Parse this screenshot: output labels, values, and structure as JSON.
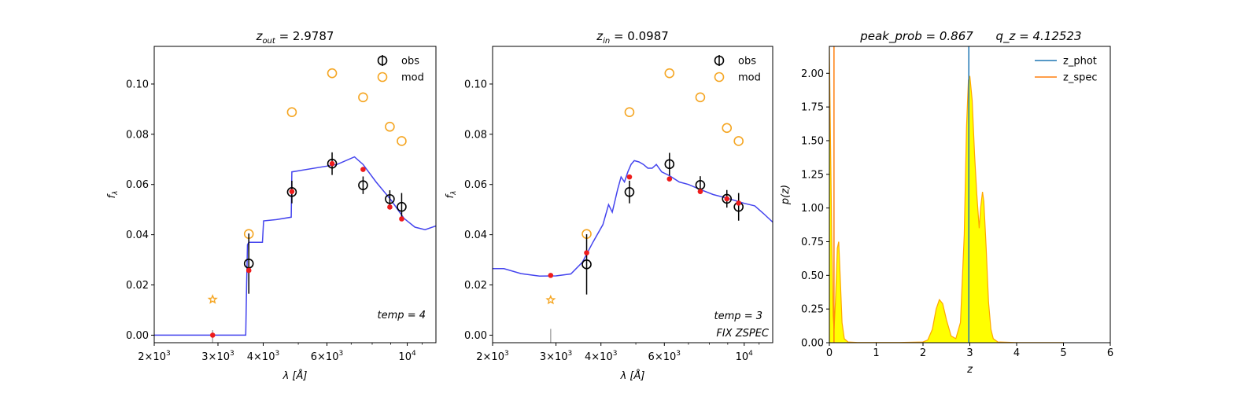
{
  "chart_data": [
    {
      "type": "scatter",
      "panel": 1,
      "title_parts": [
        "z",
        "out",
        " = 2.9787"
      ],
      "xlabel": "λ [Å]",
      "ylabel": "f",
      "ylabel_sub": "λ",
      "xscale": "log",
      "xlim": [
        2000,
        12000
      ],
      "ylim": [
        -0.003,
        0.115
      ],
      "xticks": [
        {
          "value": 2000,
          "base": "2×10",
          "exp": "3"
        },
        {
          "value": 3000,
          "base": "3×10",
          "exp": "3"
        },
        {
          "value": 4000,
          "base": "4×10",
          "exp": "3"
        },
        {
          "value": 6000,
          "base": "6×10",
          "exp": "3"
        },
        {
          "value": 10000,
          "base": "10",
          "exp": "4"
        }
      ],
      "yticks": [
        "0.00",
        "0.02",
        "0.04",
        "0.06",
        "0.08",
        "0.10"
      ],
      "legend": [
        "obs",
        "mod"
      ],
      "legend_position": "top-right",
      "annotation": "temp = 4",
      "annotation2": "",
      "obs": [
        {
          "x": 3650,
          "y": 0.0285,
          "err": 0.012
        },
        {
          "x": 4800,
          "y": 0.057,
          "err": 0.0045
        },
        {
          "x": 6200,
          "y": 0.0683,
          "err": 0.0045
        },
        {
          "x": 7550,
          "y": 0.0597,
          "err": 0.0035
        },
        {
          "x": 8950,
          "y": 0.0542,
          "err": 0.0035
        },
        {
          "x": 9650,
          "y": 0.0511,
          "err": 0.0055
        }
      ],
      "mod": [
        {
          "x": 3650,
          "y": 0.0403
        },
        {
          "x": 4800,
          "y": 0.0888
        },
        {
          "x": 6200,
          "y": 0.1043
        },
        {
          "x": 7550,
          "y": 0.0947
        },
        {
          "x": 8950,
          "y": 0.083
        },
        {
          "x": 9650,
          "y": 0.0773
        }
      ],
      "model_points": [
        {
          "x": 2900,
          "y": 0.0
        },
        {
          "x": 3650,
          "y": 0.0258
        },
        {
          "x": 4800,
          "y": 0.0572
        },
        {
          "x": 6200,
          "y": 0.0683
        },
        {
          "x": 7550,
          "y": 0.066
        },
        {
          "x": 8950,
          "y": 0.051
        },
        {
          "x": 9650,
          "y": 0.0463
        }
      ],
      "upper_limit": {
        "x": 2900,
        "y": 0.0142
      },
      "limit_line": {
        "x": 2900,
        "y1": -0.003,
        "y2": 0.002
      },
      "sed": [
        [
          2000,
          0
        ],
        [
          3580,
          0
        ],
        [
          3600,
          0.02
        ],
        [
          3620,
          0.036
        ],
        [
          3650,
          0.037
        ],
        [
          3980,
          0.037
        ],
        [
          4010,
          0.0455
        ],
        [
          4350,
          0.046
        ],
        [
          4780,
          0.047
        ],
        [
          4800,
          0.065
        ],
        [
          6400,
          0.068
        ],
        [
          7150,
          0.071
        ],
        [
          7550,
          0.068
        ],
        [
          8200,
          0.061
        ],
        [
          9000,
          0.054
        ],
        [
          9800,
          0.0465
        ],
        [
          10500,
          0.043
        ],
        [
          11200,
          0.042
        ],
        [
          12000,
          0.0435
        ]
      ]
    },
    {
      "type": "scatter",
      "panel": 2,
      "title_parts": [
        "z",
        "in",
        " = 0.0987"
      ],
      "xlabel": "λ [Å]",
      "ylabel": "f",
      "ylabel_sub": "λ",
      "xscale": "log",
      "xlim": [
        2000,
        12000
      ],
      "ylim": [
        -0.003,
        0.115
      ],
      "xticks": [
        {
          "value": 2000,
          "base": "2×10",
          "exp": "3"
        },
        {
          "value": 3000,
          "base": "3×10",
          "exp": "3"
        },
        {
          "value": 4000,
          "base": "4×10",
          "exp": "3"
        },
        {
          "value": 6000,
          "base": "6×10",
          "exp": "3"
        },
        {
          "value": 10000,
          "base": "10",
          "exp": "4"
        }
      ],
      "yticks": [
        "0.00",
        "0.02",
        "0.04",
        "0.06",
        "0.08",
        "0.10"
      ],
      "legend": [
        "obs",
        "mod"
      ],
      "legend_position": "top-right",
      "annotation": "temp = 3",
      "annotation2": "FIX ZSPEC",
      "obs": [
        {
          "x": 3650,
          "y": 0.0282,
          "err": 0.012
        },
        {
          "x": 4800,
          "y": 0.057,
          "err": 0.0045
        },
        {
          "x": 6200,
          "y": 0.0681,
          "err": 0.0045
        },
        {
          "x": 7550,
          "y": 0.0598,
          "err": 0.0035
        },
        {
          "x": 8950,
          "y": 0.0543,
          "err": 0.0035
        },
        {
          "x": 9650,
          "y": 0.0511,
          "err": 0.0055
        }
      ],
      "mod": [
        {
          "x": 3650,
          "y": 0.0403
        },
        {
          "x": 4800,
          "y": 0.0888
        },
        {
          "x": 6200,
          "y": 0.1043
        },
        {
          "x": 7550,
          "y": 0.0947
        },
        {
          "x": 8950,
          "y": 0.0825
        },
        {
          "x": 9650,
          "y": 0.0773
        }
      ],
      "model_points": [
        {
          "x": 2900,
          "y": 0.0238
        },
        {
          "x": 3650,
          "y": 0.0328
        },
        {
          "x": 4800,
          "y": 0.063
        },
        {
          "x": 6200,
          "y": 0.0622
        },
        {
          "x": 7550,
          "y": 0.0572
        },
        {
          "x": 8950,
          "y": 0.0543
        },
        {
          "x": 9650,
          "y": 0.0526
        }
      ],
      "upper_limit": {
        "x": 2900,
        "y": 0.014
      },
      "limit_line": {
        "x": 2900,
        "y1": -0.003,
        "y2": 0.0025
      },
      "sed": [
        [
          2000,
          0.0265
        ],
        [
          2150,
          0.0265
        ],
        [
          2400,
          0.0245
        ],
        [
          2700,
          0.0235
        ],
        [
          3000,
          0.0236
        ],
        [
          3300,
          0.0244
        ],
        [
          3550,
          0.029
        ],
        [
          3800,
          0.037
        ],
        [
          4050,
          0.044
        ],
        [
          4200,
          0.052
        ],
        [
          4300,
          0.049
        ],
        [
          4450,
          0.058
        ],
        [
          4550,
          0.063
        ],
        [
          4650,
          0.061
        ],
        [
          4750,
          0.065
        ],
        [
          4850,
          0.068
        ],
        [
          4950,
          0.0695
        ],
        [
          5100,
          0.069
        ],
        [
          5250,
          0.068
        ],
        [
          5400,
          0.0665
        ],
        [
          5550,
          0.0665
        ],
        [
          5700,
          0.068
        ],
        [
          5900,
          0.065
        ],
        [
          6200,
          0.0635
        ],
        [
          6600,
          0.061
        ],
        [
          7000,
          0.06
        ],
        [
          7550,
          0.058
        ],
        [
          8200,
          0.056
        ],
        [
          9000,
          0.0545
        ],
        [
          10000,
          0.0525
        ],
        [
          10700,
          0.0515
        ],
        [
          11300,
          0.0485
        ],
        [
          12000,
          0.045
        ]
      ]
    },
    {
      "type": "area",
      "panel": 3,
      "title_parts": [
        "peak_prob = 0.867",
        "q_z = 4.12523"
      ],
      "xlabel": "z",
      "ylabel": "p(z)",
      "xlim": [
        0,
        6
      ],
      "ylim": [
        0,
        2.2
      ],
      "xticks": [
        "0",
        "1",
        "2",
        "3",
        "4",
        "5",
        "6"
      ],
      "yticks": [
        "0.00",
        "0.25",
        "0.50",
        "0.75",
        "1.00",
        "1.25",
        "1.50",
        "1.75",
        "2.00"
      ],
      "legend": [
        "z_phot",
        "z_spec"
      ],
      "legend_position": "top-right",
      "z_phot": 2.9787,
      "z_spec": 0.0987,
      "pz": [
        [
          0,
          2.2
        ],
        [
          0.02,
          1.6
        ],
        [
          0.05,
          0.8
        ],
        [
          0.08,
          0.2
        ],
        [
          0.1,
          0.1
        ],
        [
          0.13,
          0.3
        ],
        [
          0.17,
          0.7
        ],
        [
          0.2,
          0.75
        ],
        [
          0.23,
          0.5
        ],
        [
          0.27,
          0.15
        ],
        [
          0.32,
          0.03
        ],
        [
          0.4,
          0.005
        ],
        [
          0.6,
          0.002
        ],
        [
          1.5,
          0.002
        ],
        [
          2.0,
          0.005
        ],
        [
          2.1,
          0.02
        ],
        [
          2.2,
          0.1
        ],
        [
          2.28,
          0.25
        ],
        [
          2.35,
          0.32
        ],
        [
          2.42,
          0.29
        ],
        [
          2.5,
          0.17
        ],
        [
          2.6,
          0.05
        ],
        [
          2.7,
          0.03
        ],
        [
          2.8,
          0.15
        ],
        [
          2.88,
          0.8
        ],
        [
          2.93,
          1.6
        ],
        [
          2.97,
          1.95
        ],
        [
          3.0,
          1.98
        ],
        [
          3.05,
          1.8
        ],
        [
          3.1,
          1.4
        ],
        [
          3.15,
          1.1
        ],
        [
          3.18,
          0.95
        ],
        [
          3.2,
          0.85
        ],
        [
          3.23,
          1.0
        ],
        [
          3.27,
          1.12
        ],
        [
          3.3,
          1.05
        ],
        [
          3.35,
          0.7
        ],
        [
          3.4,
          0.3
        ],
        [
          3.45,
          0.1
        ],
        [
          3.5,
          0.03
        ],
        [
          3.6,
          0.005
        ],
        [
          4.0,
          0.001
        ],
        [
          5.0,
          0.001
        ]
      ]
    }
  ]
}
